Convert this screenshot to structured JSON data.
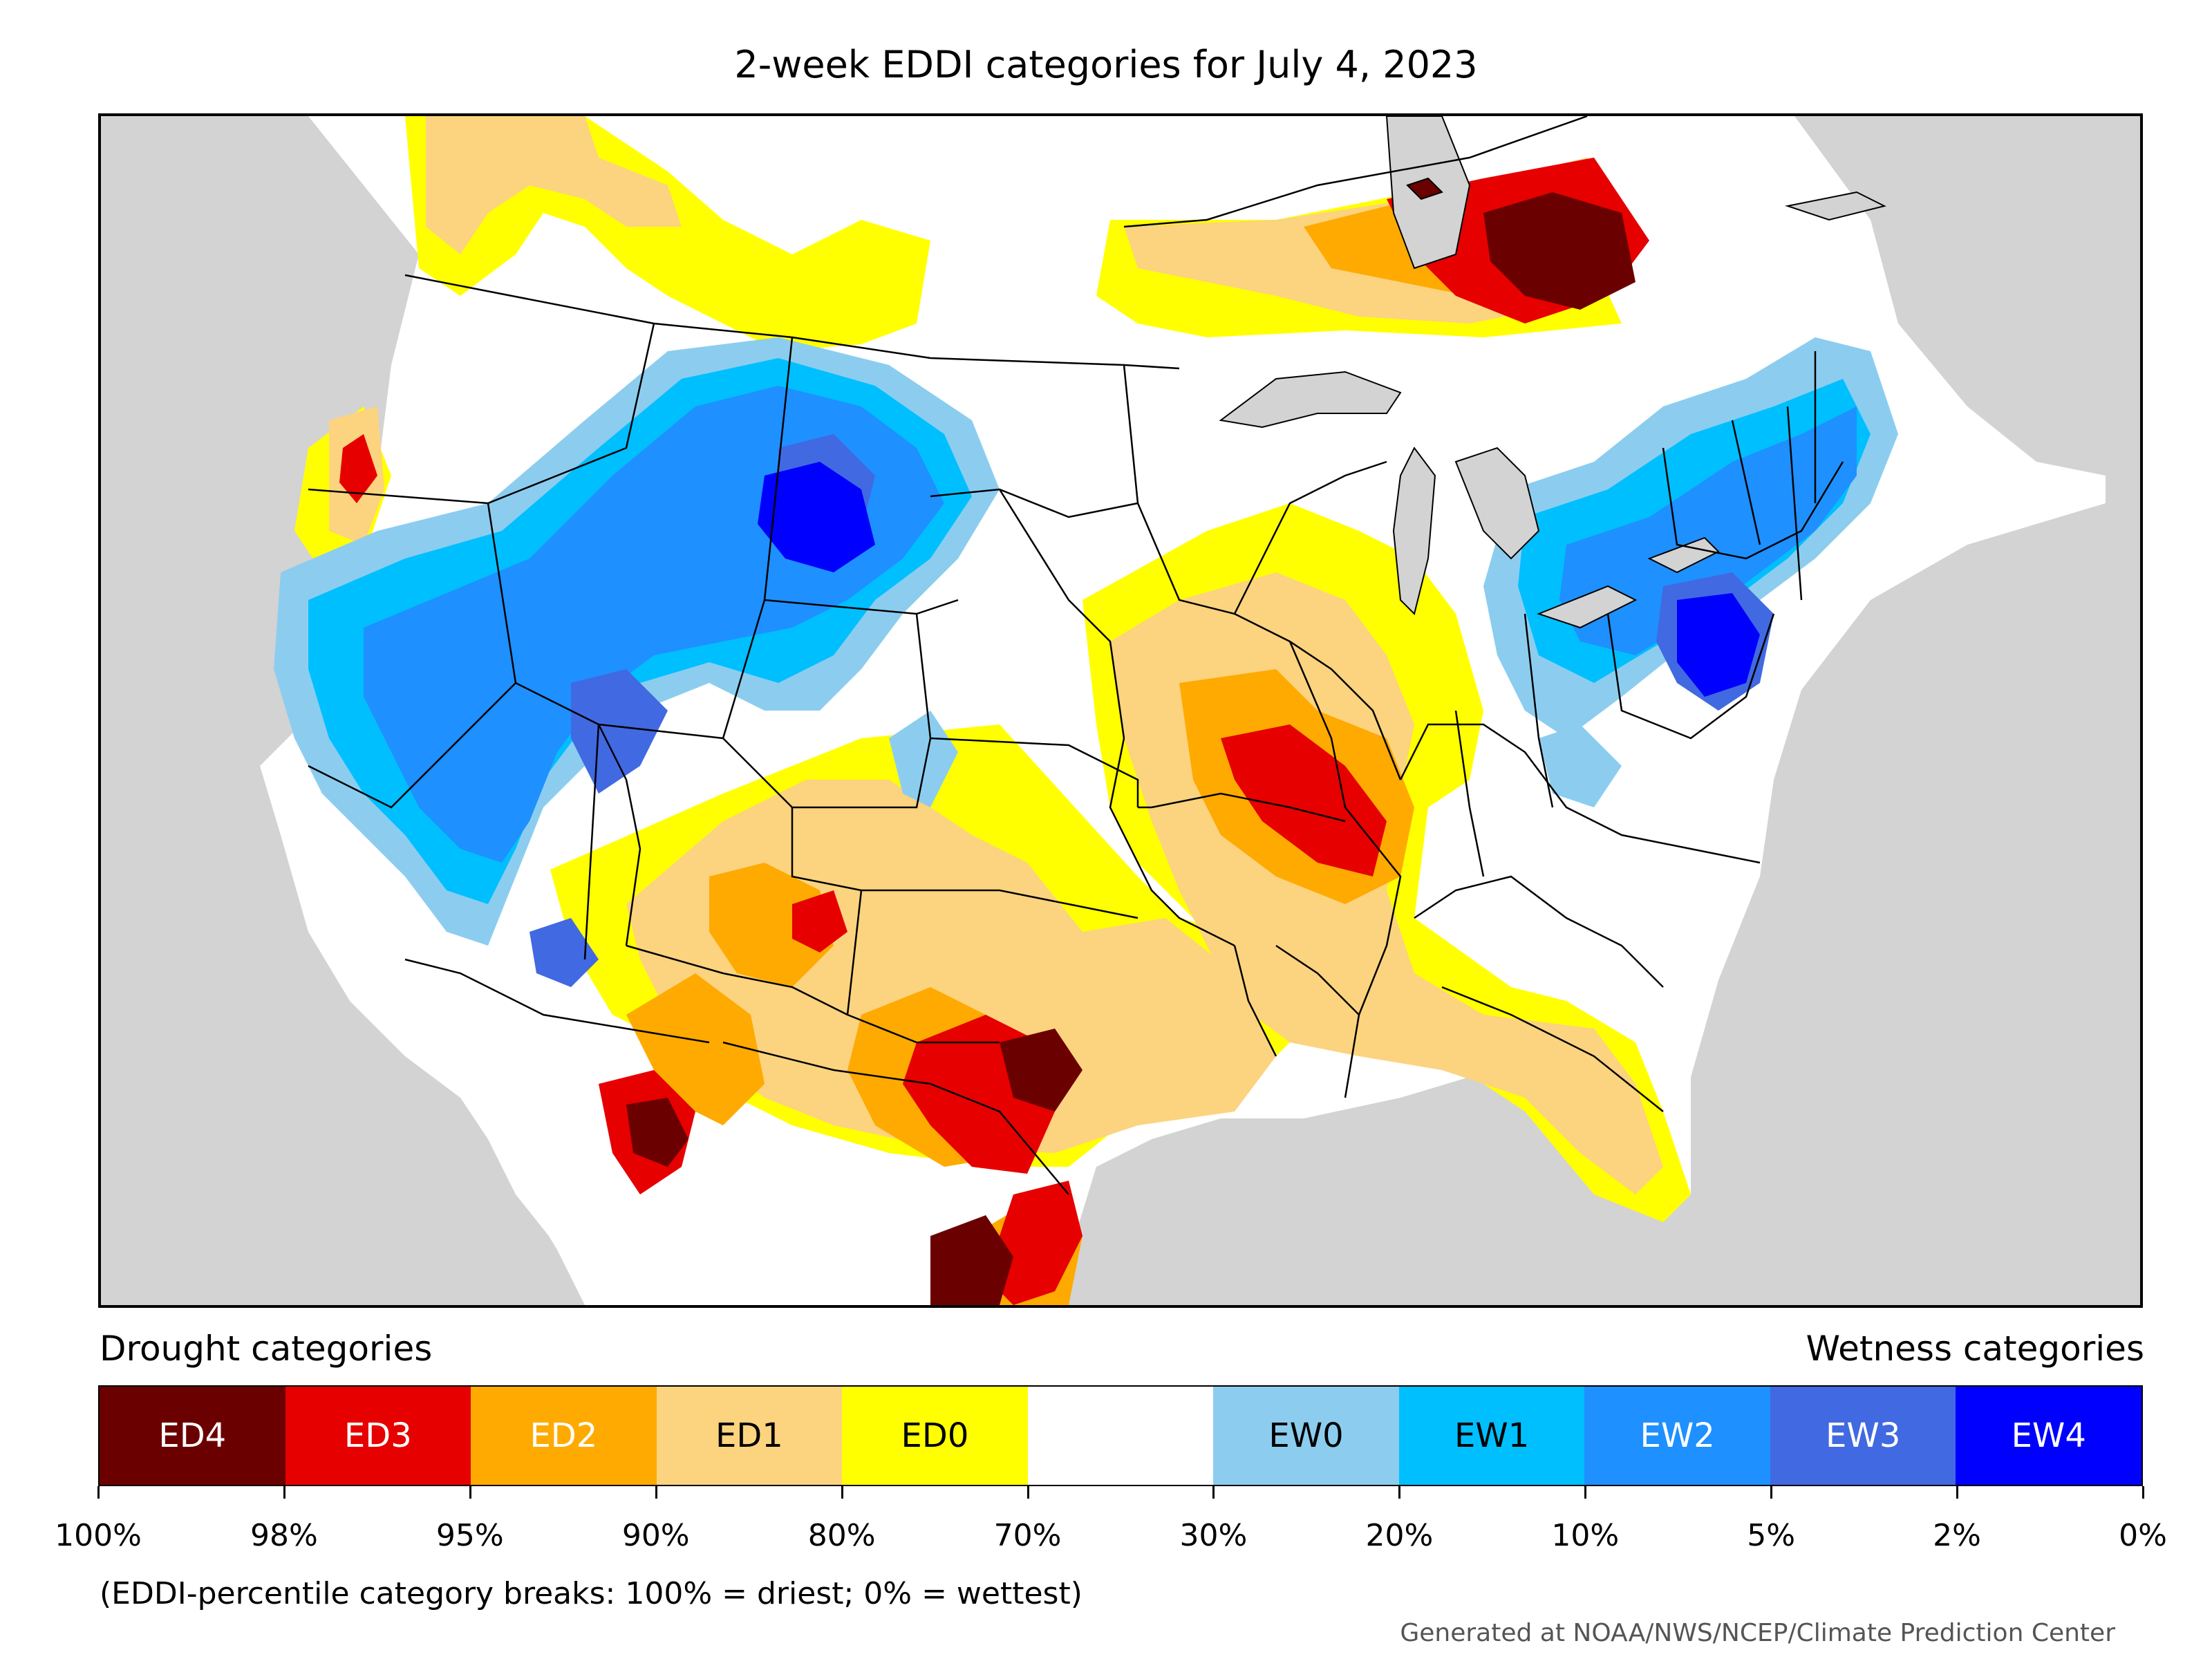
{
  "title": "2-week EDDI categories for July 4, 2023",
  "legend": {
    "left_heading": "Drought categories",
    "right_heading": "Wetness categories",
    "categories": [
      {
        "label": "ED4",
        "color": "#6b0000",
        "text_color": "#ffffff"
      },
      {
        "label": "ED3",
        "color": "#e60000",
        "text_color": "#ffffff"
      },
      {
        "label": "ED2",
        "color": "#ffaa00",
        "text_color": "#ffffff"
      },
      {
        "label": "ED1",
        "color": "#fcd37f",
        "text_color": "#000000"
      },
      {
        "label": "ED0",
        "color": "#ffff00",
        "text_color": "#000000"
      },
      {
        "label": "",
        "color": "#ffffff",
        "text_color": "#000000"
      },
      {
        "label": "EW0",
        "color": "#8ccdef",
        "text_color": "#000000"
      },
      {
        "label": "EW1",
        "color": "#00bfff",
        "text_color": "#000000"
      },
      {
        "label": "EW2",
        "color": "#1e90ff",
        "text_color": "#ffffff"
      },
      {
        "label": "EW3",
        "color": "#4169e1",
        "text_color": "#ffffff"
      },
      {
        "label": "EW4",
        "color": "#0000ff",
        "text_color": "#ffffff"
      }
    ],
    "tick_labels": [
      "100%",
      "98%",
      "95%",
      "90%",
      "80%",
      "70%",
      "30%",
      "20%",
      "10%",
      "5%",
      "2%",
      "0%"
    ]
  },
  "footnote": "(EDDI-percentile category breaks: 100% = driest; 0% = wettest)",
  "credit": "Generated at NOAA/NWS/NCEP/Climate Prediction Center",
  "map": {
    "background_color": "#d3d3d3",
    "land_color": "#ffffff",
    "water_color": "#d3d3d3"
  }
}
